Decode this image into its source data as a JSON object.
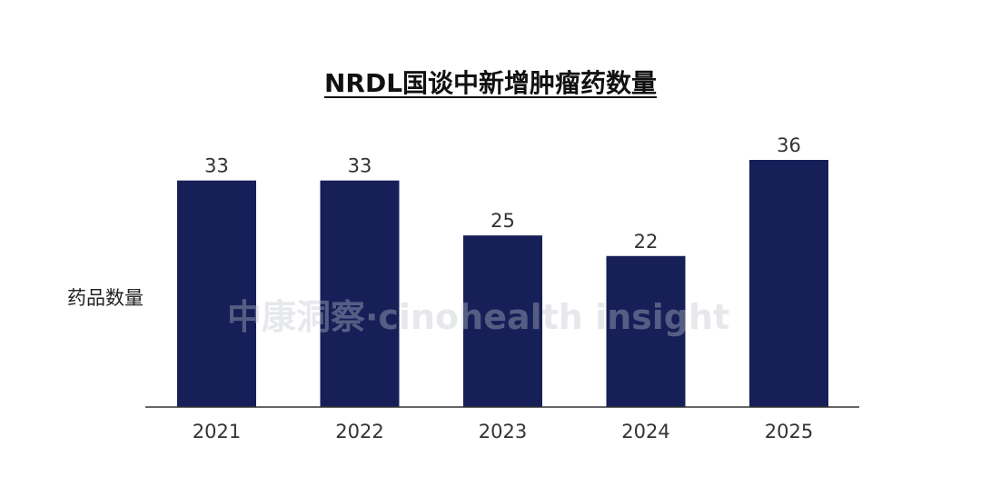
{
  "chart_data": {
    "type": "bar",
    "title": "NRDL国谈中新增肿瘤药数量",
    "ylabel": "药品数量",
    "xlabel": "",
    "categories": [
      "2021",
      "2022",
      "2023",
      "2024",
      "2025"
    ],
    "values": [
      33,
      33,
      25,
      22,
      36
    ],
    "ylim": [
      0,
      36
    ],
    "grid": false,
    "bar_color": "#161f57"
  },
  "watermark": "中康洞察·cinohealth insight"
}
